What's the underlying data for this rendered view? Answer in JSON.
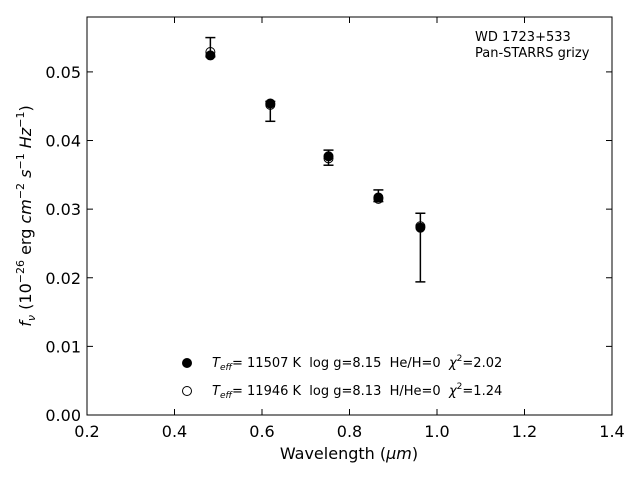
{
  "chart_data": {
    "type": "scatter",
    "title": "",
    "xlabel_main": "Wavelength (",
    "xlabel_unit": "μm",
    "xlabel_close": ")",
    "ylabel": "f_ν (10^-26 erg cm^-2 s^-1 Hz^-1)",
    "xlim": [
      0.2,
      1.4
    ],
    "ylim": [
      0.0,
      0.058
    ],
    "xticks": [
      "0.2",
      "0.4",
      "0.6",
      "0.8",
      "1.0",
      "1.2",
      "1.4"
    ],
    "yticks": [
      "0.00",
      "0.01",
      "0.02",
      "0.03",
      "0.04",
      "0.05"
    ],
    "xtick_values": [
      0.2,
      0.4,
      0.6,
      0.8,
      1.0,
      1.2,
      1.4
    ],
    "ytick_values": [
      0.0,
      0.01,
      0.02,
      0.03,
      0.04,
      0.05
    ],
    "annotations": [
      "WD 1723+533",
      "Pan-STARRS grizy"
    ],
    "observed": {
      "x": [
        0.482,
        0.619,
        0.752,
        0.866,
        0.962
      ],
      "y": [
        0.0524,
        0.0454,
        0.0375,
        0.0316,
        0.0274
      ],
      "yerr_low": [
        0.0522,
        0.0428,
        0.0364,
        0.0311,
        0.0194
      ],
      "yerr_high": [
        0.055,
        0.0457,
        0.0386,
        0.0328,
        0.0294
      ]
    },
    "series": [
      {
        "name": "He/H=0",
        "marker": "filled",
        "x": [
          0.482,
          0.619,
          0.752,
          0.866,
          0.962
        ],
        "y": [
          0.0524,
          0.0454,
          0.0377,
          0.0317,
          0.0273
        ]
      },
      {
        "name": "H/He=0",
        "marker": "open",
        "x": [
          0.482,
          0.619,
          0.752,
          0.866,
          0.962
        ],
        "y": [
          0.0529,
          0.0452,
          0.0374,
          0.0315,
          0.0275
        ]
      }
    ],
    "legend": {
      "placement": "lower-center",
      "entries": [
        {
          "teff_sym": "T",
          "teff_sub": "eff",
          "text": "= 11507 K  log g=8.15  He/H=0  ",
          "chi_sym": "χ",
          "chi_sup": "2",
          "chi_val": "=2.02"
        },
        {
          "teff_sym": "T",
          "teff_sub": "eff",
          "text": "= 11946 K  log g=8.13  H/He=0  ",
          "chi_sym": "χ",
          "chi_sup": "2",
          "chi_val": "=1.24"
        }
      ]
    }
  }
}
